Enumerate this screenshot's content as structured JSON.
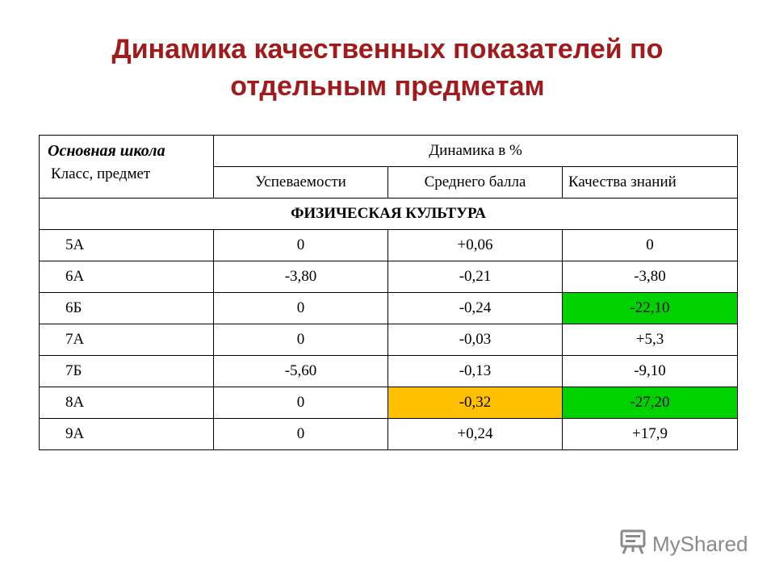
{
  "title": {
    "line1": "Динамика качественных показателей по",
    "line2": "отдельным предметам"
  },
  "table": {
    "header_school": "Основная школа",
    "header_class_subject": "Класс, предмет",
    "header_dynamics": "Динамика в %",
    "columns": [
      "Успеваемости",
      "Среднего балла",
      "Качества знаний"
    ],
    "section": "ФИЗИЧЕСКАЯ КУЛЬТУРА",
    "rows": [
      {
        "class": "5А",
        "progress": "0",
        "avg": "+0,06",
        "quality": "0"
      },
      {
        "class": "6А",
        "progress": "-3,80",
        "avg": "-0,21",
        "quality": "-3,80"
      },
      {
        "class": "6Б",
        "progress": "0",
        "avg": "-0,24",
        "quality": "-22,10"
      },
      {
        "class": "7А",
        "progress": "0",
        "avg": "-0,03",
        "quality": "+5,3"
      },
      {
        "class": "7Б",
        "progress": "-5,60",
        "avg": "-0,13",
        "quality": "-9,10"
      },
      {
        "class": "8А",
        "progress": "0",
        "avg": "-0,32",
        "quality": "-27,20"
      },
      {
        "class": "9А",
        "progress": "0",
        "avg": "+0,24",
        "quality": "+17,9"
      }
    ],
    "highlight_colors": {
      "green": "#00d200",
      "orange": "#ffc000"
    }
  },
  "watermark": {
    "text": "MyShared",
    "icon": "presentation-board-icon"
  }
}
